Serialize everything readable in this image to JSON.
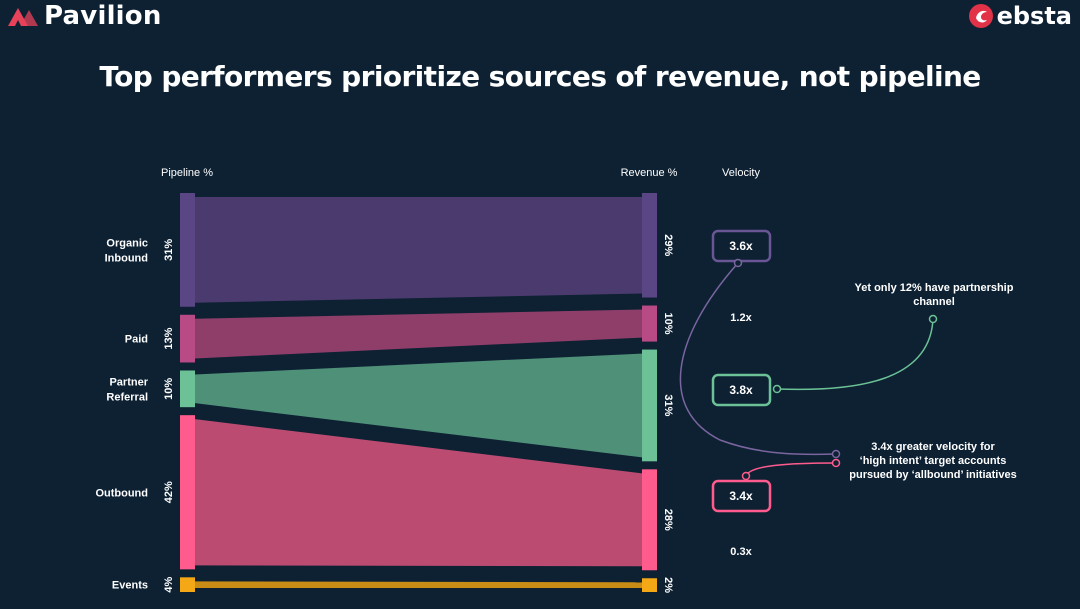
{
  "header": {
    "left_logo_text": "Pavilion",
    "right_logo_text": "ebsta",
    "title": "Top performers prioritize sources of revenue, not pipeline"
  },
  "chart_data": {
    "type": "sankey",
    "left_axis_label": "Pipeline %",
    "right_axis_label": "Revenue %",
    "velocity_label": "Velocity",
    "sources": [
      {
        "label_lines": [
          "Organic",
          "Inbound"
        ],
        "pipeline": 31,
        "revenue": 29,
        "pipeline_label": "31%",
        "revenue_label": "29%",
        "color": "#4b3a6e",
        "bar_color": "#5a4585"
      },
      {
        "label_lines": [
          "Paid"
        ],
        "pipeline": 13,
        "revenue": 10,
        "pipeline_label": "13%",
        "revenue_label": "10%",
        "color": "#8f3e6a",
        "bar_color": "#b84a86"
      },
      {
        "label_lines": [
          "Partner",
          "Referral"
        ],
        "pipeline": 10,
        "revenue": 31,
        "pipeline_label": "10%",
        "revenue_label": "31%",
        "color": "#4f9078",
        "bar_color": "#6cc296"
      },
      {
        "label_lines": [
          "Outbound"
        ],
        "pipeline": 42,
        "revenue": 28,
        "pipeline_label": "42%",
        "revenue_label": "28%",
        "color": "#bc4b72",
        "bar_color": "#ff5c8d"
      },
      {
        "label_lines": [
          "Events"
        ],
        "pipeline": 4,
        "revenue": 2,
        "pipeline_label": "4%",
        "revenue_label": "2%",
        "color": "#c98c14",
        "bar_color": "#f5a816"
      }
    ],
    "velocity": [
      {
        "value": "3.6x",
        "boxed": true,
        "color": "#6a5695"
      },
      {
        "value": "1.2x",
        "boxed": false
      },
      {
        "value": "3.8x",
        "boxed": true,
        "color": "#6cc296"
      },
      {
        "value": "3.4x",
        "boxed": true,
        "color": "#ff5c8d"
      },
      {
        "value": "0.3x",
        "boxed": false
      }
    ],
    "annotations": [
      {
        "lines": [
          "Yet only 12% have partnership",
          "channel"
        ]
      },
      {
        "lines": [
          "3.4x greater velocity for",
          "‘high intent’ target accounts",
          "pursued by ‘allbound’ initiatives"
        ]
      }
    ]
  }
}
